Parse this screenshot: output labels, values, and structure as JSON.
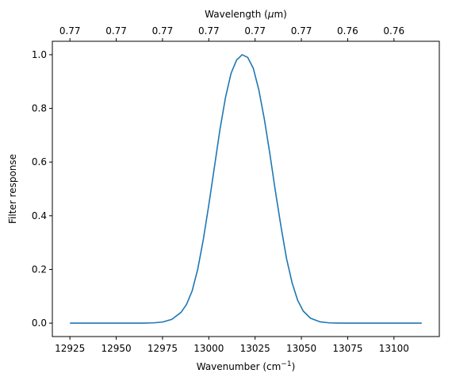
{
  "chart_data": {
    "type": "line",
    "xlabel": "Wavenumber (cm",
    "xlabel_sup": "−1",
    "xlabel_suffix": ")",
    "ylabel": "Filter response",
    "top_xlabel_prefix": "Wavelength (",
    "top_xlabel_mu": "μ",
    "top_xlabel_suffix": "m)",
    "xlim": [
      12915.5,
      13124.5
    ],
    "ylim": [
      -0.05,
      1.05
    ],
    "x_ticks": [
      12925,
      12950,
      12975,
      13000,
      13025,
      13050,
      13075,
      13100
    ],
    "x_tick_labels": [
      "12925",
      "12950",
      "12975",
      "13000",
      "13025",
      "13050",
      "13075",
      "13100"
    ],
    "y_ticks": [
      0.0,
      0.2,
      0.4,
      0.6,
      0.8,
      1.0
    ],
    "y_tick_labels": [
      "0.0",
      "0.2",
      "0.4",
      "0.6",
      "0.8",
      "1.0"
    ],
    "top_ticks_wavenumber": [
      12925,
      12950,
      12975,
      13000,
      13025,
      13050,
      13075,
      13100
    ],
    "top_tick_labels": [
      "0.77",
      "0.77",
      "0.77",
      "0.77",
      "0.77",
      "0.77",
      "0.76",
      "0.76"
    ],
    "line_color": "#1f77b4",
    "series": [
      {
        "x": [
          12925,
          12935,
          12945,
          12955,
          12960,
          12965,
          12970,
          12975,
          12980,
          12985,
          12988,
          12991,
          12994,
          12997,
          13000,
          13003,
          13006,
          13009,
          13012,
          13015,
          13018,
          13021,
          13024,
          13027,
          13030,
          13033,
          13036,
          13039,
          13042,
          13045,
          13048,
          13051,
          13055,
          13060,
          13065,
          13070,
          13075,
          13085,
          13095,
          13105,
          13115
        ],
        "y": [
          0.0,
          0.0,
          0.0,
          0.0,
          0.0,
          0.0002,
          0.001,
          0.004,
          0.014,
          0.04,
          0.07,
          0.12,
          0.2,
          0.31,
          0.44,
          0.58,
          0.72,
          0.84,
          0.93,
          0.98,
          1.0,
          0.99,
          0.95,
          0.87,
          0.76,
          0.63,
          0.49,
          0.36,
          0.24,
          0.15,
          0.085,
          0.045,
          0.018,
          0.005,
          0.001,
          0.0002,
          0.0,
          0.0,
          0.0,
          0.0,
          0.0
        ]
      }
    ]
  }
}
